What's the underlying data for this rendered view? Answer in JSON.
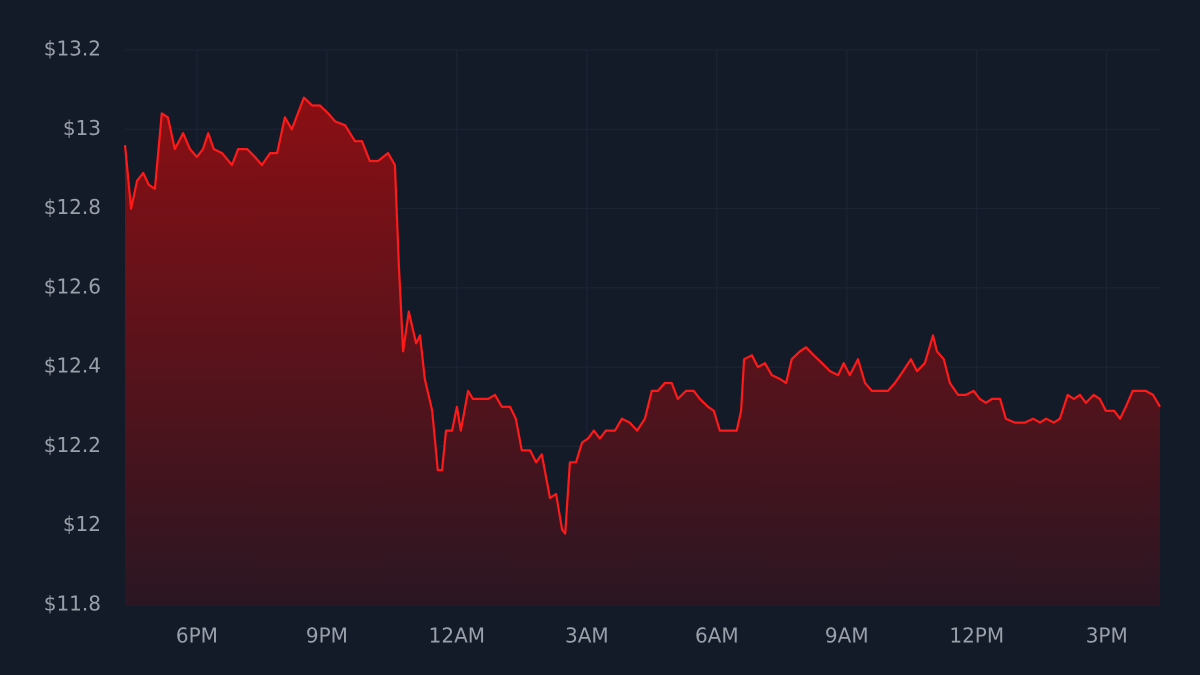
{
  "chart_data": {
    "type": "line",
    "x": [
      16.34,
      16.48,
      16.62,
      16.76,
      16.89,
      17.03,
      17.19,
      17.33,
      17.49,
      17.68,
      17.84,
      18.0,
      18.14,
      18.26,
      18.39,
      18.58,
      18.81,
      18.95,
      19.16,
      19.34,
      19.5,
      19.69,
      19.85,
      20.03,
      20.19,
      20.33,
      20.47,
      20.66,
      20.84,
      21.03,
      21.19,
      21.42,
      21.65,
      21.81,
      21.99,
      22.18,
      22.41,
      22.57,
      22.66,
      22.76,
      22.89,
      23.06,
      23.15,
      23.26,
      23.43,
      23.56,
      23.66,
      23.75,
      23.89,
      24.0,
      24.09,
      24.26,
      24.37,
      24.53,
      24.72,
      24.88,
      25.04,
      25.23,
      25.36,
      25.5,
      25.69,
      25.83,
      25.96,
      26.15,
      26.29,
      26.43,
      26.5,
      26.61,
      26.75,
      26.89,
      27.03,
      27.16,
      27.3,
      27.44,
      27.65,
      27.81,
      27.99,
      28.16,
      28.34,
      28.5,
      28.64,
      28.8,
      28.96,
      29.1,
      29.29,
      29.47,
      29.61,
      29.8,
      29.93,
      30.07,
      30.26,
      30.46,
      30.56,
      30.63,
      30.81,
      30.95,
      31.11,
      31.27,
      31.46,
      31.6,
      31.73,
      31.92,
      32.06,
      32.24,
      32.43,
      32.61,
      32.8,
      32.93,
      33.07,
      33.26,
      33.42,
      33.58,
      33.77,
      33.95,
      34.11,
      34.3,
      34.48,
      34.62,
      34.8,
      34.99,
      35.08,
      35.24,
      35.38,
      35.57,
      35.75,
      35.93,
      36.07,
      36.21,
      36.35,
      36.54,
      36.67,
      36.88,
      37.11,
      37.3,
      37.46,
      37.6,
      37.78,
      37.92,
      38.1,
      38.24,
      38.38,
      38.52,
      38.7,
      38.84,
      38.98,
      39.17,
      39.31,
      39.44,
      39.6,
      39.77,
      39.9,
      40.07,
      40.23
    ],
    "values": [
      12.96,
      12.8,
      12.87,
      12.89,
      12.86,
      12.85,
      13.04,
      13.03,
      12.95,
      12.99,
      12.95,
      12.93,
      12.95,
      12.99,
      12.95,
      12.94,
      12.91,
      12.95,
      12.95,
      12.93,
      12.91,
      12.94,
      12.94,
      13.03,
      13.0,
      13.04,
      13.08,
      13.06,
      13.06,
      13.04,
      13.02,
      13.01,
      12.97,
      12.97,
      12.92,
      12.92,
      12.94,
      12.91,
      12.66,
      12.44,
      12.54,
      12.46,
      12.48,
      12.37,
      12.29,
      12.14,
      12.14,
      12.24,
      12.24,
      12.3,
      12.24,
      12.34,
      12.32,
      12.32,
      12.32,
      12.33,
      12.3,
      12.3,
      12.27,
      12.19,
      12.19,
      12.16,
      12.18,
      12.07,
      12.08,
      11.99,
      11.98,
      12.16,
      12.16,
      12.21,
      12.22,
      12.24,
      12.22,
      12.24,
      12.24,
      12.27,
      12.26,
      12.24,
      12.27,
      12.34,
      12.34,
      12.36,
      12.36,
      12.32,
      12.34,
      12.34,
      12.32,
      12.3,
      12.29,
      12.24,
      12.24,
      12.24,
      12.29,
      12.42,
      12.43,
      12.4,
      12.41,
      12.38,
      12.37,
      12.36,
      12.42,
      12.44,
      12.45,
      12.43,
      12.41,
      12.39,
      12.38,
      12.41,
      12.38,
      12.42,
      12.36,
      12.34,
      12.34,
      12.34,
      12.36,
      12.39,
      12.42,
      12.39,
      12.41,
      12.48,
      12.44,
      12.42,
      12.36,
      12.33,
      12.33,
      12.34,
      12.32,
      12.31,
      12.32,
      12.32,
      12.27,
      12.26,
      12.26,
      12.27,
      12.26,
      12.27,
      12.26,
      12.27,
      12.33,
      12.32,
      12.33,
      12.31,
      12.33,
      12.32,
      12.29,
      12.29,
      12.27,
      12.3,
      12.34,
      12.34,
      12.34,
      12.33,
      12.3
    ],
    "color": "#ff1a1a",
    "xlim": [
      16.34,
      40.23
    ],
    "xticks": [
      {
        "value": 18,
        "label": "6PM"
      },
      {
        "value": 21,
        "label": "9PM"
      },
      {
        "value": 24,
        "label": "12AM"
      },
      {
        "value": 27,
        "label": "3AM"
      },
      {
        "value": 30,
        "label": "6AM"
      },
      {
        "value": 33,
        "label": "9AM"
      },
      {
        "value": 36,
        "label": "12PM"
      },
      {
        "value": 39,
        "label": "3PM"
      }
    ],
    "ylim": [
      11.8,
      13.2
    ],
    "yticks": [
      {
        "value": 11.8,
        "label": "$11.8"
      },
      {
        "value": 12,
        "label": "$12"
      },
      {
        "value": 12.2,
        "label": "$12.2"
      },
      {
        "value": 12.4,
        "label": "$12.4"
      },
      {
        "value": 12.6,
        "label": "$12.6"
      },
      {
        "value": 12.8,
        "label": "$12.8"
      },
      {
        "value": 13,
        "label": "$13"
      },
      {
        "value": 13.2,
        "label": "$13.2"
      }
    ],
    "grid": true
  }
}
